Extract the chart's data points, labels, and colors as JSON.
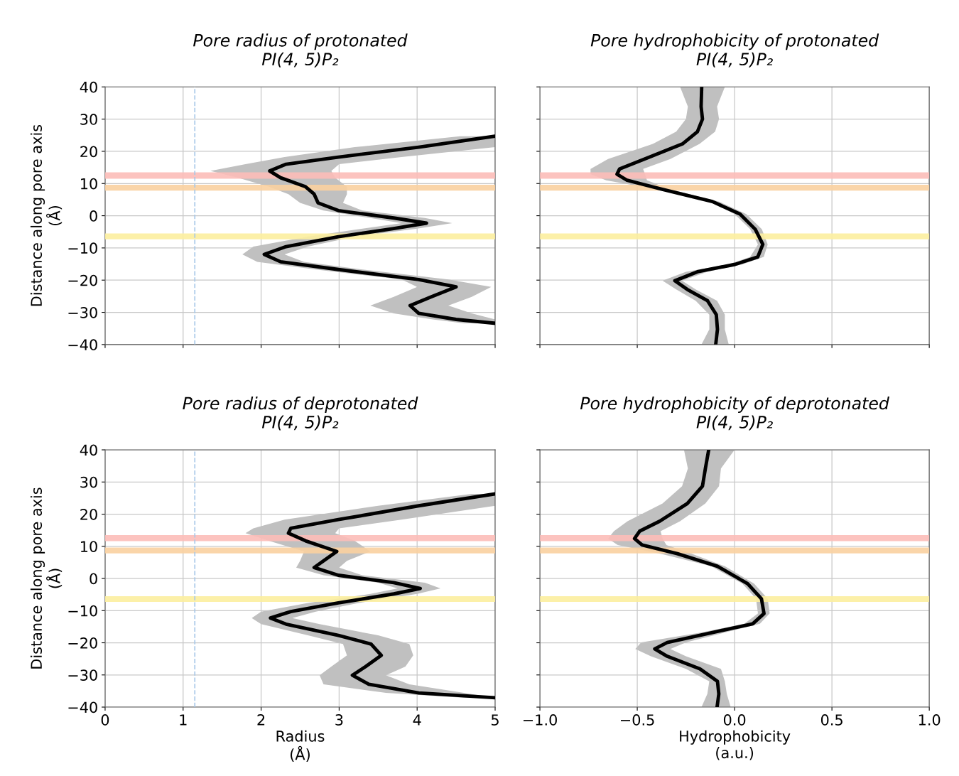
{
  "chart_data": [
    {
      "type": "line",
      "orientation": "horizontal",
      "title": "Pore radius of protonated\nPI(4, 5)P₂",
      "ylabel": "Distance along pore axis\n(Å)",
      "xlim": [
        0,
        5
      ],
      "xticks": [
        0,
        1,
        2,
        3,
        4,
        5
      ],
      "ylim": [
        -40,
        40
      ],
      "yticks": [
        {
          "value": -40,
          "label": "−40"
        },
        {
          "value": -30,
          "label": "−30"
        },
        {
          "value": -20,
          "label": "−20"
        },
        {
          "value": -10,
          "label": "−10"
        },
        0,
        10,
        20,
        30,
        40
      ],
      "grid": true,
      "tick_labels": "y",
      "line_style": "solid",
      "marker": "none",
      "ref_lines": [
        {
          "axis": "x",
          "value": 1.15,
          "color": "#a8c8e8",
          "line_style": "dashed"
        }
      ],
      "bands": [
        {
          "axis": "y",
          "from": 11.5,
          "to": 13.5,
          "color": "#fcbcb8"
        },
        {
          "axis": "y",
          "from": 7.8,
          "to": 9.6,
          "color": "#f9d0a0"
        },
        {
          "axis": "y",
          "from": -7.3,
          "to": -5.5,
          "color": "#fcee9e"
        }
      ],
      "series": [
        {
          "color": "#000000",
          "values": [
            5.0,
            4.02,
            2.99,
            2.32,
            2.11,
            2.25,
            2.57,
            2.68,
            2.73,
            2.99,
            3.7,
            4.12,
            3.7,
            2.99,
            2.32,
            2.04,
            2.25,
            2.99,
            4.02,
            4.5,
            4.18,
            3.91,
            4.02,
            4.5,
            5.0
          ],
          "x": [
            24.7,
            21.3,
            18.2,
            16.0,
            13.9,
            11.8,
            9.0,
            6.7,
            4.0,
            1.6,
            -0.7,
            -2.3,
            -4.0,
            -6.5,
            -9.6,
            -12.0,
            -14.3,
            -16.7,
            -19.8,
            -22.1,
            -25.2,
            -27.9,
            -30.3,
            -32.2,
            -33.4
          ],
          "lower": [
            4.55,
            3.2,
            2.3,
            1.8,
            1.35,
            1.7,
            2.1,
            2.35,
            2.5,
            2.8,
            3.4,
            3.8,
            3.3,
            2.6,
            1.9,
            1.76,
            1.95,
            2.7,
            3.8,
            4.0,
            3.7,
            3.4,
            3.7,
            4.2,
            4.6
          ],
          "upper": [
            5.0,
            5.0,
            3.8,
            3.0,
            2.9,
            2.95,
            3.1,
            3.1,
            3.05,
            3.3,
            4.1,
            4.45,
            4.0,
            3.2,
            2.6,
            2.3,
            2.55,
            3.3,
            4.4,
            4.95,
            4.7,
            4.4,
            4.7,
            5.0,
            5.0
          ]
        }
      ]
    },
    {
      "type": "line",
      "orientation": "horizontal",
      "title": "Pore hydrophobicity of protonated\nPI(4, 5)P₂",
      "xlim": [
        -1,
        1
      ],
      "xticks": [
        -1,
        -0.5,
        0,
        0.5,
        1
      ],
      "ylim": [
        -40,
        40
      ],
      "yticks": [
        -40,
        -30,
        -20,
        -10,
        0,
        10,
        20,
        30,
        40
      ],
      "grid": true,
      "tick_labels": false,
      "line_style": "solid",
      "marker": "none",
      "bands": [
        {
          "axis": "y",
          "from": 11.5,
          "to": 13.5,
          "color": "#fcbcb8"
        },
        {
          "axis": "y",
          "from": 7.8,
          "to": 9.6,
          "color": "#f9d0a0"
        },
        {
          "axis": "y",
          "from": -7.3,
          "to": -5.5,
          "color": "#fcee9e"
        }
      ],
      "series": [
        {
          "color": "#000000",
          "values": [
            -0.169,
            -0.172,
            -0.165,
            -0.191,
            -0.268,
            -0.462,
            -0.591,
            -0.604,
            -0.552,
            -0.372,
            -0.114,
            0.028,
            0.106,
            0.145,
            0.119,
            0.003,
            -0.191,
            -0.307,
            -0.243,
            -0.139,
            -0.094,
            -0.088,
            -0.097
          ],
          "x": [
            40,
            33.9,
            30.0,
            26.1,
            22.3,
            17.6,
            14.5,
            12.9,
            11.0,
            8.2,
            4.4,
            0.5,
            -4.2,
            -8.9,
            -12.8,
            -15.1,
            -17.4,
            -20.2,
            -22.9,
            -26.4,
            -30.7,
            -35.3,
            -40
          ],
          "lower": [
            -0.28,
            -0.24,
            -0.25,
            -0.3,
            -0.42,
            -0.65,
            -0.74,
            -0.74,
            -0.66,
            -0.4,
            -0.13,
            0.0,
            0.08,
            0.12,
            0.08,
            -0.03,
            -0.25,
            -0.37,
            -0.3,
            -0.2,
            -0.13,
            -0.13,
            -0.17
          ],
          "upper": [
            -0.05,
            -0.09,
            -0.08,
            -0.1,
            -0.18,
            -0.33,
            -0.47,
            -0.46,
            -0.45,
            -0.33,
            -0.08,
            0.06,
            0.14,
            0.17,
            0.15,
            0.04,
            -0.14,
            -0.27,
            -0.2,
            -0.09,
            -0.05,
            -0.05,
            -0.03
          ]
        }
      ]
    },
    {
      "type": "line",
      "orientation": "horizontal",
      "title": "Pore radius of deprotonated\nPI(4, 5)P₂",
      "xlabel": "Radius\n(Å)",
      "ylabel": "Distance along pore axis\n(Å)",
      "xlim": [
        0,
        5
      ],
      "xticks": [
        0,
        1,
        2,
        3,
        4,
        5
      ],
      "ylim": [
        -40,
        40
      ],
      "yticks": [
        {
          "value": -40,
          "label": "−40"
        },
        {
          "value": -30,
          "label": "−30"
        },
        {
          "value": -20,
          "label": "−20"
        },
        {
          "value": -10,
          "label": "−10"
        },
        0,
        10,
        20,
        30,
        40
      ],
      "grid": true,
      "line_style": "solid",
      "marker": "none",
      "ref_lines": [
        {
          "axis": "x",
          "value": 1.15,
          "color": "#a8c8e8",
          "line_style": "dashed"
        }
      ],
      "bands": [
        {
          "axis": "y",
          "from": 11.6,
          "to": 13.5,
          "color": "#fcbcb8"
        },
        {
          "axis": "y",
          "from": 7.8,
          "to": 9.6,
          "color": "#f9d0a0"
        },
        {
          "axis": "y",
          "from": -7.3,
          "to": -5.5,
          "color": "#fcee9e"
        }
      ],
      "series": [
        {
          "color": "#000000",
          "values": [
            5.0,
            4.02,
            2.99,
            2.38,
            2.35,
            2.57,
            2.97,
            2.8,
            2.68,
            2.99,
            3.7,
            4.04,
            3.7,
            2.99,
            2.38,
            2.12,
            2.32,
            2.99,
            3.41,
            3.54,
            3.34,
            3.17,
            3.38,
            4.02,
            5.0
          ],
          "x": [
            26.3,
            22.6,
            18.3,
            15.6,
            14.1,
            11.7,
            8.4,
            5.5,
            3.4,
            1.0,
            -1.3,
            -3.1,
            -4.8,
            -7.6,
            -10.3,
            -12.3,
            -14.2,
            -17.7,
            -20.4,
            -23.9,
            -27.4,
            -30.1,
            -32.9,
            -35.6,
            -37.1
          ],
          "lower": [
            4.7,
            3.5,
            2.3,
            1.9,
            1.8,
            2.1,
            2.55,
            2.5,
            2.45,
            2.8,
            3.5,
            3.75,
            3.4,
            2.6,
            2.0,
            1.88,
            2.0,
            2.6,
            3.05,
            3.1,
            2.9,
            2.75,
            2.8,
            3.6,
            4.6
          ],
          "upper": [
            5.0,
            5.0,
            3.8,
            3.0,
            2.95,
            3.2,
            3.4,
            3.1,
            3.0,
            3.3,
            4.1,
            4.3,
            4.0,
            3.25,
            2.7,
            2.4,
            2.75,
            3.5,
            3.9,
            3.95,
            3.85,
            3.6,
            3.9,
            4.6,
            5.0
          ]
        }
      ]
    },
    {
      "type": "line",
      "orientation": "horizontal",
      "title": "Pore hydrophobicity of deprotonated\nPI(4, 5)P₂",
      "xlabel": "Hydrophobicity\n(a.u.)",
      "xlim": [
        -1,
        1
      ],
      "xticks": [
        {
          "value": -1,
          "label": "−1.0"
        },
        {
          "value": -0.5,
          "label": "−0.5"
        },
        {
          "value": 0,
          "label": "0.0"
        },
        0.5,
        {
          "value": 1,
          "label": "1.0"
        }
      ],
      "ylim": [
        -40,
        40
      ],
      "yticks": [
        -40,
        -30,
        -20,
        -10,
        0,
        10,
        20,
        30,
        40
      ],
      "grid": true,
      "tick_labels": "x",
      "line_style": "solid",
      "marker": "none",
      "bands": [
        {
          "axis": "y",
          "from": 11.6,
          "to": 13.5,
          "color": "#fcbcb8"
        },
        {
          "axis": "y",
          "from": 7.8,
          "to": 9.6,
          "color": "#f9d0a0"
        },
        {
          "axis": "y",
          "from": -7.3,
          "to": -5.5,
          "color": "#fcee9e"
        }
      ],
      "series": [
        {
          "color": "#000000",
          "values": [
            -0.133,
            -0.15,
            -0.165,
            -0.243,
            -0.385,
            -0.488,
            -0.514,
            -0.475,
            -0.294,
            -0.088,
            0.067,
            0.138,
            0.151,
            0.093,
            -0.114,
            -0.346,
            -0.41,
            -0.346,
            -0.178,
            -0.088,
            -0.081,
            -0.09
          ],
          "x": [
            40,
            34.2,
            28.7,
            23.3,
            17.8,
            14.7,
            12.4,
            10.4,
            7.7,
            3.8,
            -1.6,
            -6.3,
            -10.9,
            -14.1,
            -16.8,
            -19.9,
            -21.9,
            -24.2,
            -28.1,
            -32.0,
            -35.9,
            -40
          ],
          "lower": [
            -0.26,
            -0.24,
            -0.27,
            -0.37,
            -0.55,
            -0.62,
            -0.65,
            -0.6,
            -0.38,
            -0.12,
            0.04,
            0.11,
            0.12,
            0.05,
            -0.17,
            -0.48,
            -0.51,
            -0.43,
            -0.25,
            -0.13,
            -0.14,
            -0.17
          ],
          "upper": [
            0.0,
            -0.07,
            -0.08,
            -0.15,
            -0.28,
            -0.38,
            -0.37,
            -0.35,
            -0.22,
            -0.05,
            0.1,
            0.17,
            0.18,
            0.13,
            -0.05,
            -0.25,
            -0.33,
            -0.25,
            -0.07,
            -0.05,
            -0.04,
            -0.02
          ]
        }
      ]
    }
  ]
}
